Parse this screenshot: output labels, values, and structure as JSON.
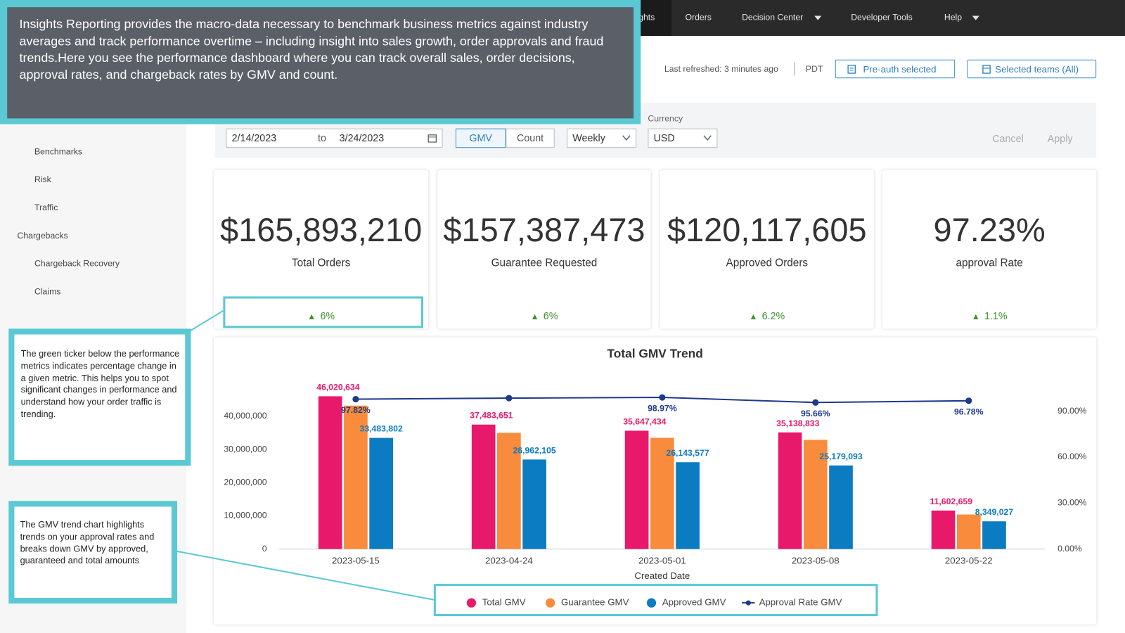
{
  "nav": {
    "items": [
      "ghts",
      "Orders",
      "Decision Center",
      "Developer Tools",
      "Help"
    ]
  },
  "header": {
    "last_refreshed": "Last refreshed: 3 minutes ago",
    "timezone": "PDT",
    "buttons": [
      "Pre-auth selected",
      "Selected teams (All)"
    ]
  },
  "sidebar": {
    "items": [
      "Benchmarks",
      "Risk",
      "Traffic",
      "Chargebacks",
      "Chargeback Recovery",
      "Claims"
    ]
  },
  "filters": {
    "start_date": "2/14/2023",
    "to": "to",
    "end_date": "3/24/2023",
    "toggle": [
      "GMV",
      "Count"
    ],
    "interval": "Weekly",
    "currency_label": "Currency",
    "currency": "USD",
    "cancel": "Cancel",
    "apply": "Apply"
  },
  "metrics": [
    {
      "value": "$165,893,210",
      "label": "Total Orders",
      "change": "6%"
    },
    {
      "value": "$157,387,473",
      "label": "Guarantee Requested",
      "change": "6%"
    },
    {
      "value": "$120,117,605",
      "label": "Approved Orders",
      "change": "6.2%"
    },
    {
      "value": "97.23%",
      "label": "approval Rate",
      "change": "1.1%"
    }
  ],
  "callouts": {
    "intro": "Insights Reporting provides the macro-data necessary to benchmark business metrics against industry averages and track performance overtime – including insight into sales growth, order approvals and fraud trends.Here you see the performance dashboard where you can track overall sales, order decisions, approval rates, and chargeback rates by GMV and count.",
    "ticker": "The green ticker below the performance metrics indicates percentage change in a given metric. This helps you to spot significant changes in performance and understand how your order traffic is trending.",
    "trend": "The GMV trend chart highlights trends on your approval rates and breaks down GMV by approved, guaranteed and total amounts"
  },
  "chart_data": {
    "type": "bar",
    "title": "Total GMV Trend",
    "x_label": "Created Date",
    "categories": [
      "2023-05-15",
      "2023-04-24",
      "2023-05-01",
      "2023-05-08",
      "2023-05-22"
    ],
    "series": [
      {
        "name": "Total GMV",
        "color": "#e8196b",
        "values": [
          46020634,
          37483651,
          35647434,
          35138833,
          11602659
        ],
        "value_labels": [
          "46,020,634",
          "37,483,651",
          "35,647,434",
          "35,138,833",
          "11,602,659"
        ]
      },
      {
        "name": "Guarantee GMV",
        "color": "#f98b3c",
        "values": [
          43200000,
          35000000,
          33500000,
          32900000,
          10400000
        ]
      },
      {
        "name": "Approved GMV",
        "color": "#0b7cc1",
        "values": [
          33483802,
          26962105,
          26143577,
          25179093,
          8349027
        ],
        "value_labels": [
          "33,483,802",
          "26,962,105",
          "26,143,577",
          "25,179,093",
          "8,349,027"
        ]
      },
      {
        "name": "Approval Rate GMV",
        "color": "#1d3a8a",
        "type": "line",
        "axis": "y2",
        "values": [
          97.82,
          98.5,
          98.97,
          95.66,
          96.78
        ],
        "value_labels": [
          "97.82%",
          null,
          "98.97%",
          "95.66%",
          "96.78%"
        ]
      }
    ],
    "ylim": [
      0,
      48000000
    ],
    "yticks": [
      0,
      {
        "value": 10000000,
        "label": "10,000,000"
      },
      {
        "value": 20000000,
        "label": "20,000,000"
      },
      {
        "value": 30000000,
        "label": "30,000,000"
      },
      {
        "value": 40000000,
        "label": "40,000,000"
      }
    ],
    "y2lim": [
      0,
      104
    ],
    "y2ticks": [
      {
        "value": 0,
        "label": "0.00%"
      },
      {
        "value": 30,
        "label": "30.00%"
      },
      {
        "value": 60,
        "label": "60.00%"
      },
      {
        "value": 90,
        "label": "90.00%"
      }
    ],
    "grid": false
  }
}
